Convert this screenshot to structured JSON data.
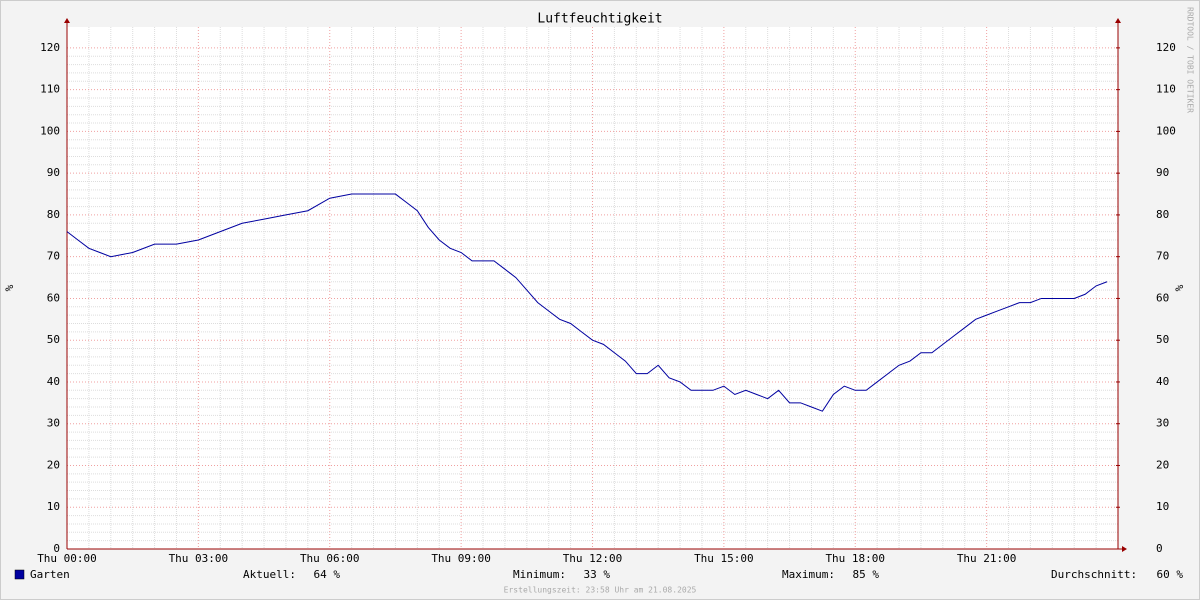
{
  "chart_data": {
    "type": "line",
    "title": "Luftfeuchtigkeit",
    "y_label": "%",
    "y2_label": "%",
    "watermark": "RRDTOOL / TOBI OETIKER",
    "footer": "Erstellungszeit: 23:58 Uhr am 21.08.2025",
    "xlim": [
      0,
      24
    ],
    "xticks": [
      {
        "value": 0,
        "label": "Thu 00:00"
      },
      {
        "value": 3,
        "label": "Thu 03:00"
      },
      {
        "value": 6,
        "label": "Thu 06:00"
      },
      {
        "value": 9,
        "label": "Thu 09:00"
      },
      {
        "value": 12,
        "label": "Thu 12:00"
      },
      {
        "value": 15,
        "label": "Thu 15:00"
      },
      {
        "value": 18,
        "label": "Thu 18:00"
      },
      {
        "value": 21,
        "label": "Thu 21:00"
      }
    ],
    "ylim": [
      0,
      125
    ],
    "yticks": [
      0,
      10,
      20,
      30,
      40,
      50,
      60,
      70,
      80,
      90,
      100,
      110,
      120
    ],
    "y2lim": [
      0,
      125
    ],
    "y2ticks": [
      0,
      10,
      20,
      30,
      40,
      50,
      60,
      70,
      80,
      90,
      100,
      110,
      120
    ],
    "grid": true,
    "x": [
      0,
      0.25,
      0.5,
      0.75,
      1,
      1.5,
      2,
      2.5,
      3,
      3.5,
      4,
      4.5,
      5,
      5.5,
      6,
      6.5,
      7,
      7.5,
      7.75,
      8,
      8.25,
      8.5,
      8.75,
      9,
      9.25,
      9.5,
      9.75,
      10,
      10.25,
      10.5,
      10.75,
      11,
      11.25,
      11.5,
      11.75,
      12,
      12.25,
      12.5,
      12.75,
      13,
      13.25,
      13.5,
      13.75,
      14,
      14.25,
      14.5,
      14.75,
      15,
      15.25,
      15.5,
      15.75,
      16,
      16.25,
      16.5,
      16.75,
      17,
      17.25,
      17.5,
      17.75,
      18,
      18.25,
      18.5,
      18.75,
      19,
      19.25,
      19.5,
      19.75,
      20,
      20.25,
      20.5,
      20.75,
      21,
      21.25,
      21.5,
      21.75,
      22,
      22.25,
      22.5,
      22.75,
      23,
      23.25,
      23.5,
      23.75
    ],
    "series": [
      {
        "name": "Garten",
        "color": "#0000a0",
        "values": [
          76,
          74,
          72,
          71,
          70,
          71,
          73,
          73,
          74,
          76,
          78,
          79,
          80,
          81,
          84,
          85,
          85,
          85,
          83,
          81,
          77,
          74,
          72,
          71,
          69,
          69,
          69,
          67,
          65,
          62,
          59,
          57,
          55,
          54,
          52,
          50,
          49,
          47,
          45,
          42,
          42,
          44,
          41,
          40,
          38,
          38,
          38,
          39,
          37,
          38,
          37,
          36,
          38,
          35,
          35,
          34,
          33,
          37,
          39,
          38,
          38,
          40,
          42,
          44,
          45,
          47,
          47,
          49,
          51,
          53,
          55,
          56,
          57,
          58,
          59,
          59,
          60,
          60,
          60,
          60,
          61,
          63,
          64
        ]
      }
    ],
    "stats": [
      {
        "label": "Aktuell:",
        "value": "64 %"
      },
      {
        "label": "Minimum:",
        "value": "33 %"
      },
      {
        "label": "Maximum:",
        "value": "85 %"
      },
      {
        "label": "Durchschnitt:",
        "value": "60 %"
      }
    ]
  }
}
